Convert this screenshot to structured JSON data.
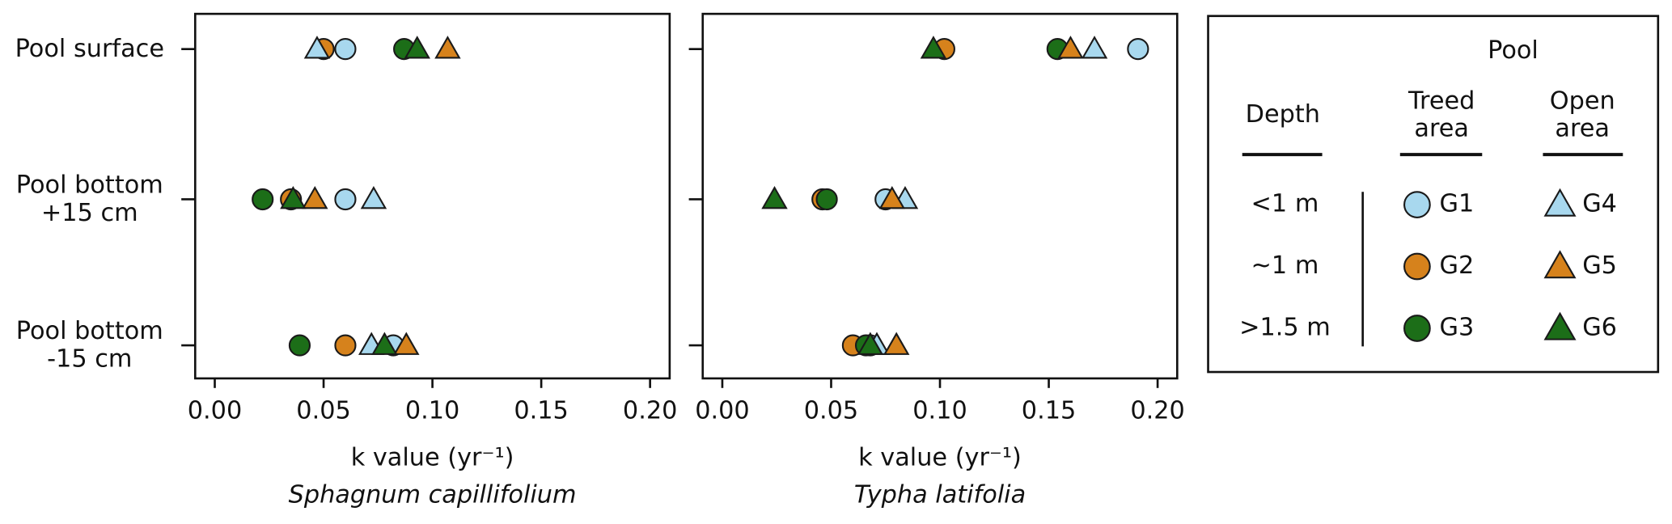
{
  "chart_data": {
    "type": "dot",
    "categories": [
      "Pool surface",
      "Pool bottom\n+15 cm",
      "Pool bottom\n-15 cm"
    ],
    "xlabel": "k value (yr⁻¹)",
    "xlim": [
      -0.009,
      0.209
    ],
    "xticks": [
      {
        "value": 0,
        "label": "0.00"
      },
      {
        "value": 0.05,
        "label": "0.05"
      },
      {
        "value": 0.1,
        "label": "0.10"
      },
      {
        "value": 0.15,
        "label": "0.15"
      },
      {
        "value": 0.2,
        "label": "0.20"
      }
    ],
    "series": [
      {
        "name": "G1",
        "color": "#a8d8ee",
        "marker": "circle"
      },
      {
        "name": "G2",
        "color": "#d6821c",
        "marker": "circle"
      },
      {
        "name": "G3",
        "color": "#1c6e18",
        "marker": "circle"
      },
      {
        "name": "G4",
        "color": "#a8d8ee",
        "marker": "triangle"
      },
      {
        "name": "G5",
        "color": "#d6821c",
        "marker": "triangle"
      },
      {
        "name": "G6",
        "color": "#1c6e18",
        "marker": "triangle"
      }
    ],
    "panels": [
      {
        "subtitle": "Sphagnum capillifolium",
        "values": [
          [
            0.06,
            0.06,
            0.082
          ],
          [
            0.05,
            0.035,
            0.06
          ],
          [
            0.087,
            0.022,
            0.039
          ],
          [
            0.047,
            0.073,
            0.072
          ],
          [
            0.107,
            0.046,
            0.088
          ],
          [
            0.093,
            0.036,
            0.078
          ]
        ]
      },
      {
        "subtitle": "Typha latifolia",
        "values": [
          [
            0.191,
            0.075,
            0.068
          ],
          [
            0.102,
            0.046,
            0.06
          ],
          [
            0.154,
            0.048,
            0.066
          ],
          [
            0.171,
            0.084,
            0.071
          ],
          [
            0.16,
            0.078,
            0.08
          ],
          [
            0.097,
            0.024,
            0.068
          ]
        ]
      }
    ]
  },
  "legend": {
    "title": "Pool",
    "depth_header": "Depth",
    "treed_header": "Treed\narea",
    "open_header": "Open\narea",
    "depths": [
      "<1 m",
      "~1 m",
      ">1.5 m"
    ]
  }
}
